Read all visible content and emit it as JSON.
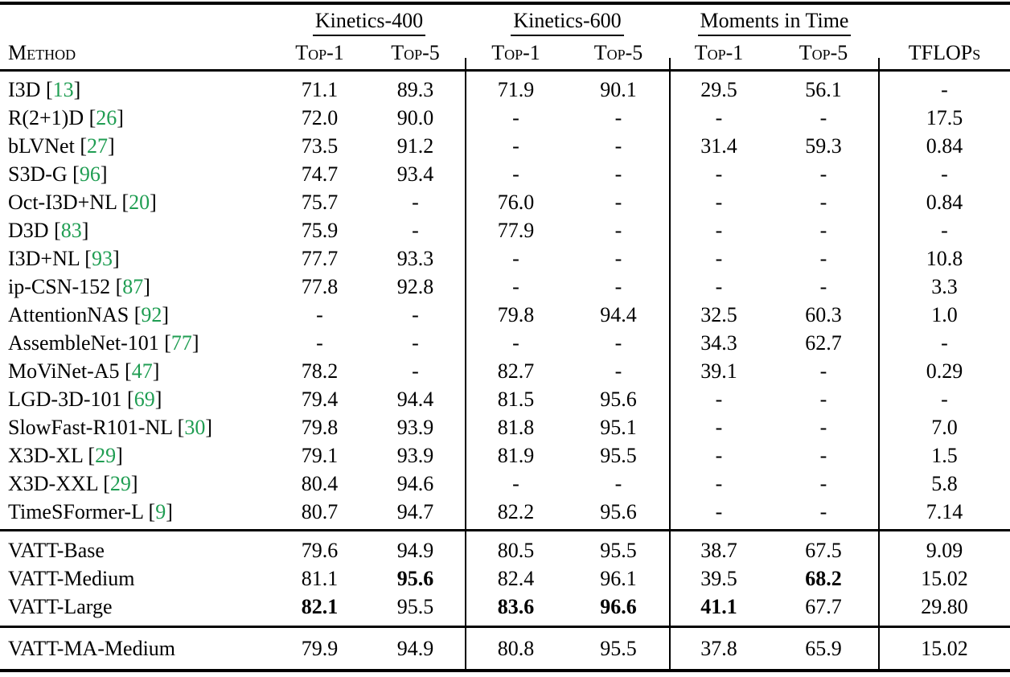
{
  "colors": {
    "citation_green": "#1f9d52",
    "text": "#000000",
    "background": "#ffffff"
  },
  "table": {
    "col_groups": [
      {
        "label": "Kinetics-400"
      },
      {
        "label": "Kinetics-600"
      },
      {
        "label": "Moments in Time"
      }
    ],
    "headers": {
      "method": "Method",
      "top1": "Top-1",
      "top5": "Top-5",
      "tflops": "TFLOPs"
    },
    "sections": [
      {
        "rows": [
          {
            "method": "I3D",
            "cite": "13",
            "values": [
              "71.1",
              "89.3",
              "71.9",
              "90.1",
              "29.5",
              "56.1",
              "-"
            ],
            "bold": []
          },
          {
            "method": "R(2+1)D",
            "cite": "26",
            "values": [
              "72.0",
              "90.0",
              "-",
              "-",
              "-",
              "-",
              "17.5"
            ],
            "bold": []
          },
          {
            "method": "bLVNet",
            "cite": "27",
            "values": [
              "73.5",
              "91.2",
              "-",
              "-",
              "31.4",
              "59.3",
              "0.84"
            ],
            "bold": []
          },
          {
            "method": "S3D-G",
            "cite": "96",
            "values": [
              "74.7",
              "93.4",
              "-",
              "-",
              "-",
              "-",
              "-"
            ],
            "bold": []
          },
          {
            "method": "Oct-I3D+NL",
            "cite": "20",
            "values": [
              "75.7",
              "-",
              "76.0",
              "-",
              "-",
              "-",
              "0.84"
            ],
            "bold": []
          },
          {
            "method": "D3D",
            "cite": "83",
            "values": [
              "75.9",
              "-",
              "77.9",
              "-",
              "-",
              "-",
              "-"
            ],
            "bold": []
          },
          {
            "method": "I3D+NL",
            "cite": "93",
            "values": [
              "77.7",
              "93.3",
              "-",
              "-",
              "-",
              "-",
              "10.8"
            ],
            "bold": []
          },
          {
            "method": "ip-CSN-152",
            "cite": "87",
            "values": [
              "77.8",
              "92.8",
              "-",
              "-",
              "-",
              "-",
              "3.3"
            ],
            "bold": []
          },
          {
            "method": "AttentionNAS",
            "cite": "92",
            "values": [
              "-",
              "-",
              "79.8",
              "94.4",
              "32.5",
              "60.3",
              "1.0"
            ],
            "bold": []
          },
          {
            "method": "AssembleNet-101",
            "cite": "77",
            "values": [
              "-",
              "-",
              "-",
              "-",
              "34.3",
              "62.7",
              "-"
            ],
            "bold": []
          },
          {
            "method": "MoViNet-A5",
            "cite": "47",
            "values": [
              "78.2",
              "-",
              "82.7",
              "-",
              "39.1",
              "-",
              "0.29"
            ],
            "bold": []
          },
          {
            "method": "LGD-3D-101",
            "cite": "69",
            "values": [
              "79.4",
              "94.4",
              "81.5",
              "95.6",
              "-",
              "-",
              "-"
            ],
            "bold": []
          },
          {
            "method": "SlowFast-R101-NL",
            "cite": "30",
            "values": [
              "79.8",
              "93.9",
              "81.8",
              "95.1",
              "-",
              "-",
              "7.0"
            ],
            "bold": []
          },
          {
            "method": "X3D-XL",
            "cite": "29",
            "values": [
              "79.1",
              "93.9",
              "81.9",
              "95.5",
              "-",
              "-",
              "1.5"
            ],
            "bold": []
          },
          {
            "method": "X3D-XXL",
            "cite": "29",
            "values": [
              "80.4",
              "94.6",
              "-",
              "-",
              "-",
              "-",
              "5.8"
            ],
            "bold": []
          },
          {
            "method": "TimeSFormer-L",
            "cite": "9",
            "values": [
              "80.7",
              "94.7",
              "82.2",
              "95.6",
              "-",
              "-",
              "7.14"
            ],
            "bold": []
          }
        ]
      },
      {
        "rows": [
          {
            "method": "VATT-Base",
            "cite": null,
            "values": [
              "79.6",
              "94.9",
              "80.5",
              "95.5",
              "38.7",
              "67.5",
              "9.09"
            ],
            "bold": []
          },
          {
            "method": "VATT-Medium",
            "cite": null,
            "values": [
              "81.1",
              "95.6",
              "82.4",
              "96.1",
              "39.5",
              "68.2",
              "15.02"
            ],
            "bold": [
              1,
              5
            ]
          },
          {
            "method": "VATT-Large",
            "cite": null,
            "values": [
              "82.1",
              "95.5",
              "83.6",
              "96.6",
              "41.1",
              "67.7",
              "29.80"
            ],
            "bold": [
              0,
              2,
              3,
              4
            ]
          }
        ]
      },
      {
        "rows": [
          {
            "method": "VATT-MA-Medium",
            "cite": null,
            "values": [
              "79.9",
              "94.9",
              "80.8",
              "95.5",
              "37.8",
              "65.9",
              "15.02"
            ],
            "bold": []
          }
        ]
      }
    ]
  }
}
